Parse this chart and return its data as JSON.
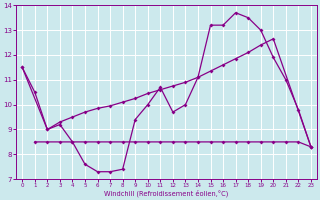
{
  "xlabel": "Windchill (Refroidissement éolien,°C)",
  "xlim": [
    -0.5,
    23.5
  ],
  "ylim": [
    7,
    14
  ],
  "yticks": [
    7,
    8,
    9,
    10,
    11,
    12,
    13,
    14
  ],
  "xticks": [
    0,
    1,
    2,
    3,
    4,
    5,
    6,
    7,
    8,
    9,
    10,
    11,
    12,
    13,
    14,
    15,
    16,
    17,
    18,
    19,
    20,
    21,
    22,
    23
  ],
  "bg_color": "#cce9ed",
  "line_color": "#880088",
  "grid_color": "#ffffff",
  "line1_x": [
    0,
    1,
    2,
    3,
    4,
    5,
    6,
    7,
    8,
    9,
    10,
    11,
    12,
    13,
    14,
    15,
    16,
    17,
    18,
    19,
    20,
    21,
    22,
    23
  ],
  "line1_y": [
    11.5,
    10.5,
    9.0,
    9.2,
    8.5,
    7.6,
    7.3,
    7.3,
    7.4,
    9.4,
    10.0,
    10.7,
    9.7,
    10.0,
    11.1,
    13.2,
    13.2,
    13.7,
    13.5,
    13.0,
    11.9,
    11.0,
    9.8,
    8.3
  ],
  "line2_x": [
    0,
    2,
    3,
    4,
    5,
    6,
    7,
    8,
    9,
    10,
    11,
    12,
    13,
    14,
    15,
    16,
    17,
    18,
    19,
    20,
    23
  ],
  "line2_y": [
    11.5,
    9.0,
    9.3,
    9.5,
    9.7,
    9.85,
    9.95,
    10.1,
    10.25,
    10.45,
    10.6,
    10.75,
    10.9,
    11.1,
    11.35,
    11.6,
    11.85,
    12.1,
    12.4,
    12.65,
    8.3
  ],
  "line3_x": [
    1,
    2,
    3,
    4,
    5,
    6,
    7,
    8,
    9,
    10,
    11,
    12,
    13,
    14,
    15,
    16,
    17,
    18,
    19,
    20,
    21,
    22,
    23
  ],
  "line3_y": [
    8.5,
    8.5,
    8.5,
    8.5,
    8.5,
    8.5,
    8.5,
    8.5,
    8.5,
    8.5,
    8.5,
    8.5,
    8.5,
    8.5,
    8.5,
    8.5,
    8.5,
    8.5,
    8.5,
    8.5,
    8.5,
    8.5,
    8.3
  ]
}
